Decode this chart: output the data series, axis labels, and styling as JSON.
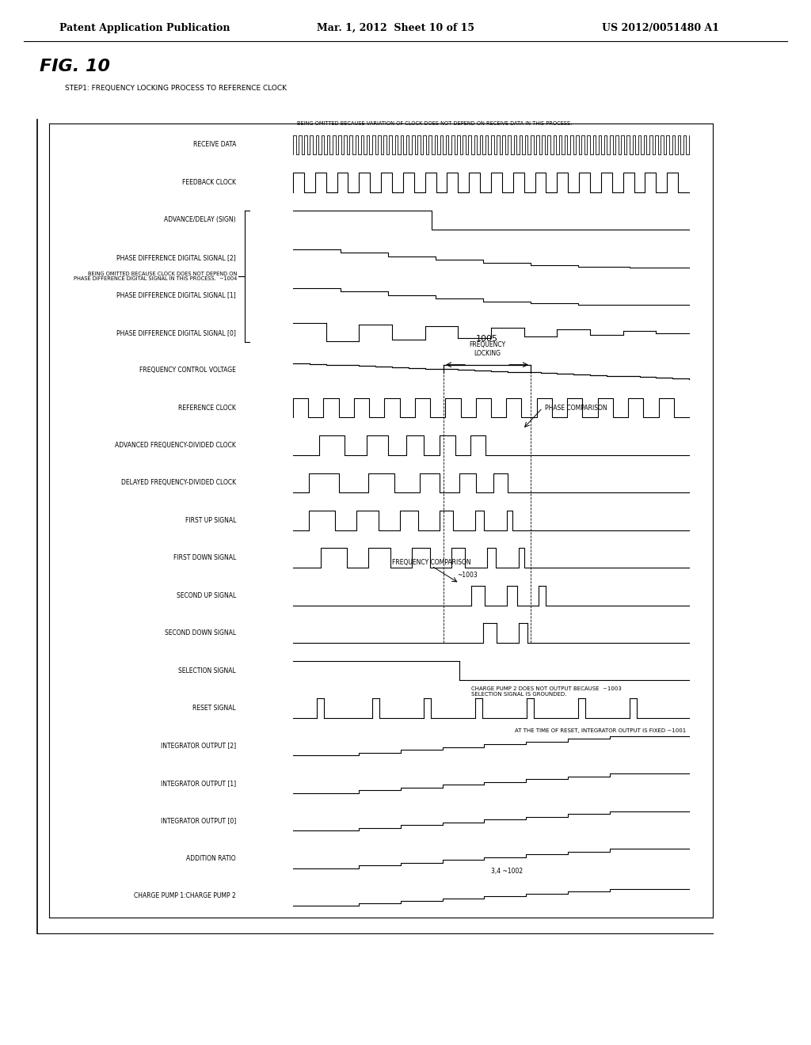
{
  "title": "FIG. 10",
  "header_left": "Patent Application Publication",
  "header_center": "Mar. 1, 2012  Sheet 10 of 15",
  "header_right": "US 2012/0051480 A1",
  "step_label": "STEP1: FREQUENCY LOCKING PROCESS TO REFERENCE CLOCK",
  "signal_labels": [
    "RECEIVE DATA",
    "FEEDBACK CLOCK",
    "ADVANCE/DELAY (SIGN)",
    "PHASE DIFFERENCE DIGITAL SIGNAL [2]",
    "PHASE DIFFERENCE DIGITAL SIGNAL [1]",
    "PHASE DIFFERENCE DIGITAL SIGNAL [0]",
    "FREQUENCY CONTROL VOLTAGE",
    "REFERENCE CLOCK",
    "ADVANCED FREQUENCY-DIVIDED CLOCK",
    "DELAYED FREQUENCY-DIVIDED CLOCK",
    "FIRST UP SIGNAL",
    "FIRST DOWN SIGNAL",
    "SECOND UP SIGNAL",
    "SECOND DOWN SIGNAL",
    "SELECTION SIGNAL",
    "RESET SIGNAL",
    "INTEGRATOR OUTPUT [2]",
    "INTEGRATOR OUTPUT [1]",
    "INTEGRATOR OUTPUT [0]",
    "ADDITION RATIO",
    "CHARGE PUMP 1:CHARGE PUMP 2"
  ],
  "annotation_being_omitted_1": "BEING OMITTED BECAUSE VARIATION OF CLOCK DOES NOT DEPEND ON RECEIVE DATA IN THIS PROCESS.",
  "annotation_being_omitted_2": "BEING OMITTED BECAUSE CLOCK DOES NOT DEPEND ON\nPHASE DIFFERENCE DIGITAL SIGNAL IN THIS PROCESS.  ~1004",
  "annotation_frequency_locking": "FREQUENCY\nLOCKING",
  "annotation_1005": "1005",
  "annotation_phase_comparison": "PHASE COMPARISON",
  "annotation_frequency_comparison": "FREQUENCY COMPARISON",
  "annotation_charge_pump": "CHARGE PUMP 2 DOES NOT OUTPUT BECAUSE  ~1003\nSELECTION SIGNAL IS GROUNDED.",
  "annotation_1001": "AT THE TIME OF RESET, INTEGRATOR OUTPUT IS FIXED ~1001",
  "annotation_1002": "3,4 ~1002",
  "annotation_1003": "~1003",
  "background": "#ffffff",
  "line_color": "#000000",
  "text_color": "#000000"
}
